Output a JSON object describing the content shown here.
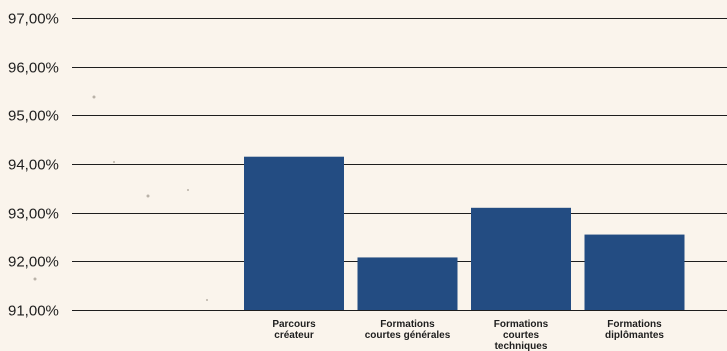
{
  "chart_data": {
    "type": "bar",
    "title": "",
    "xlabel": "",
    "ylabel": "",
    "categories": [
      [
        "Parcours",
        "créateur"
      ],
      [
        "Formations",
        "courtes générales"
      ],
      [
        "Formations",
        "courtes",
        "techniques"
      ],
      [
        "Formations",
        "diplômantes"
      ]
    ],
    "values": [
      94.15,
      92.08,
      93.1,
      92.55
    ],
    "ylim": [
      91,
      97
    ],
    "yticks": [
      "91,00%",
      "92,00%",
      "93,00%",
      "94,00%",
      "95,00%",
      "96,00%",
      "97,00%"
    ],
    "grid": true,
    "legend": "none",
    "colors": {
      "bar": "#234c82",
      "grid": "#1e1e1e",
      "background": "#faf4ec",
      "text": "#1e1e1e"
    }
  }
}
